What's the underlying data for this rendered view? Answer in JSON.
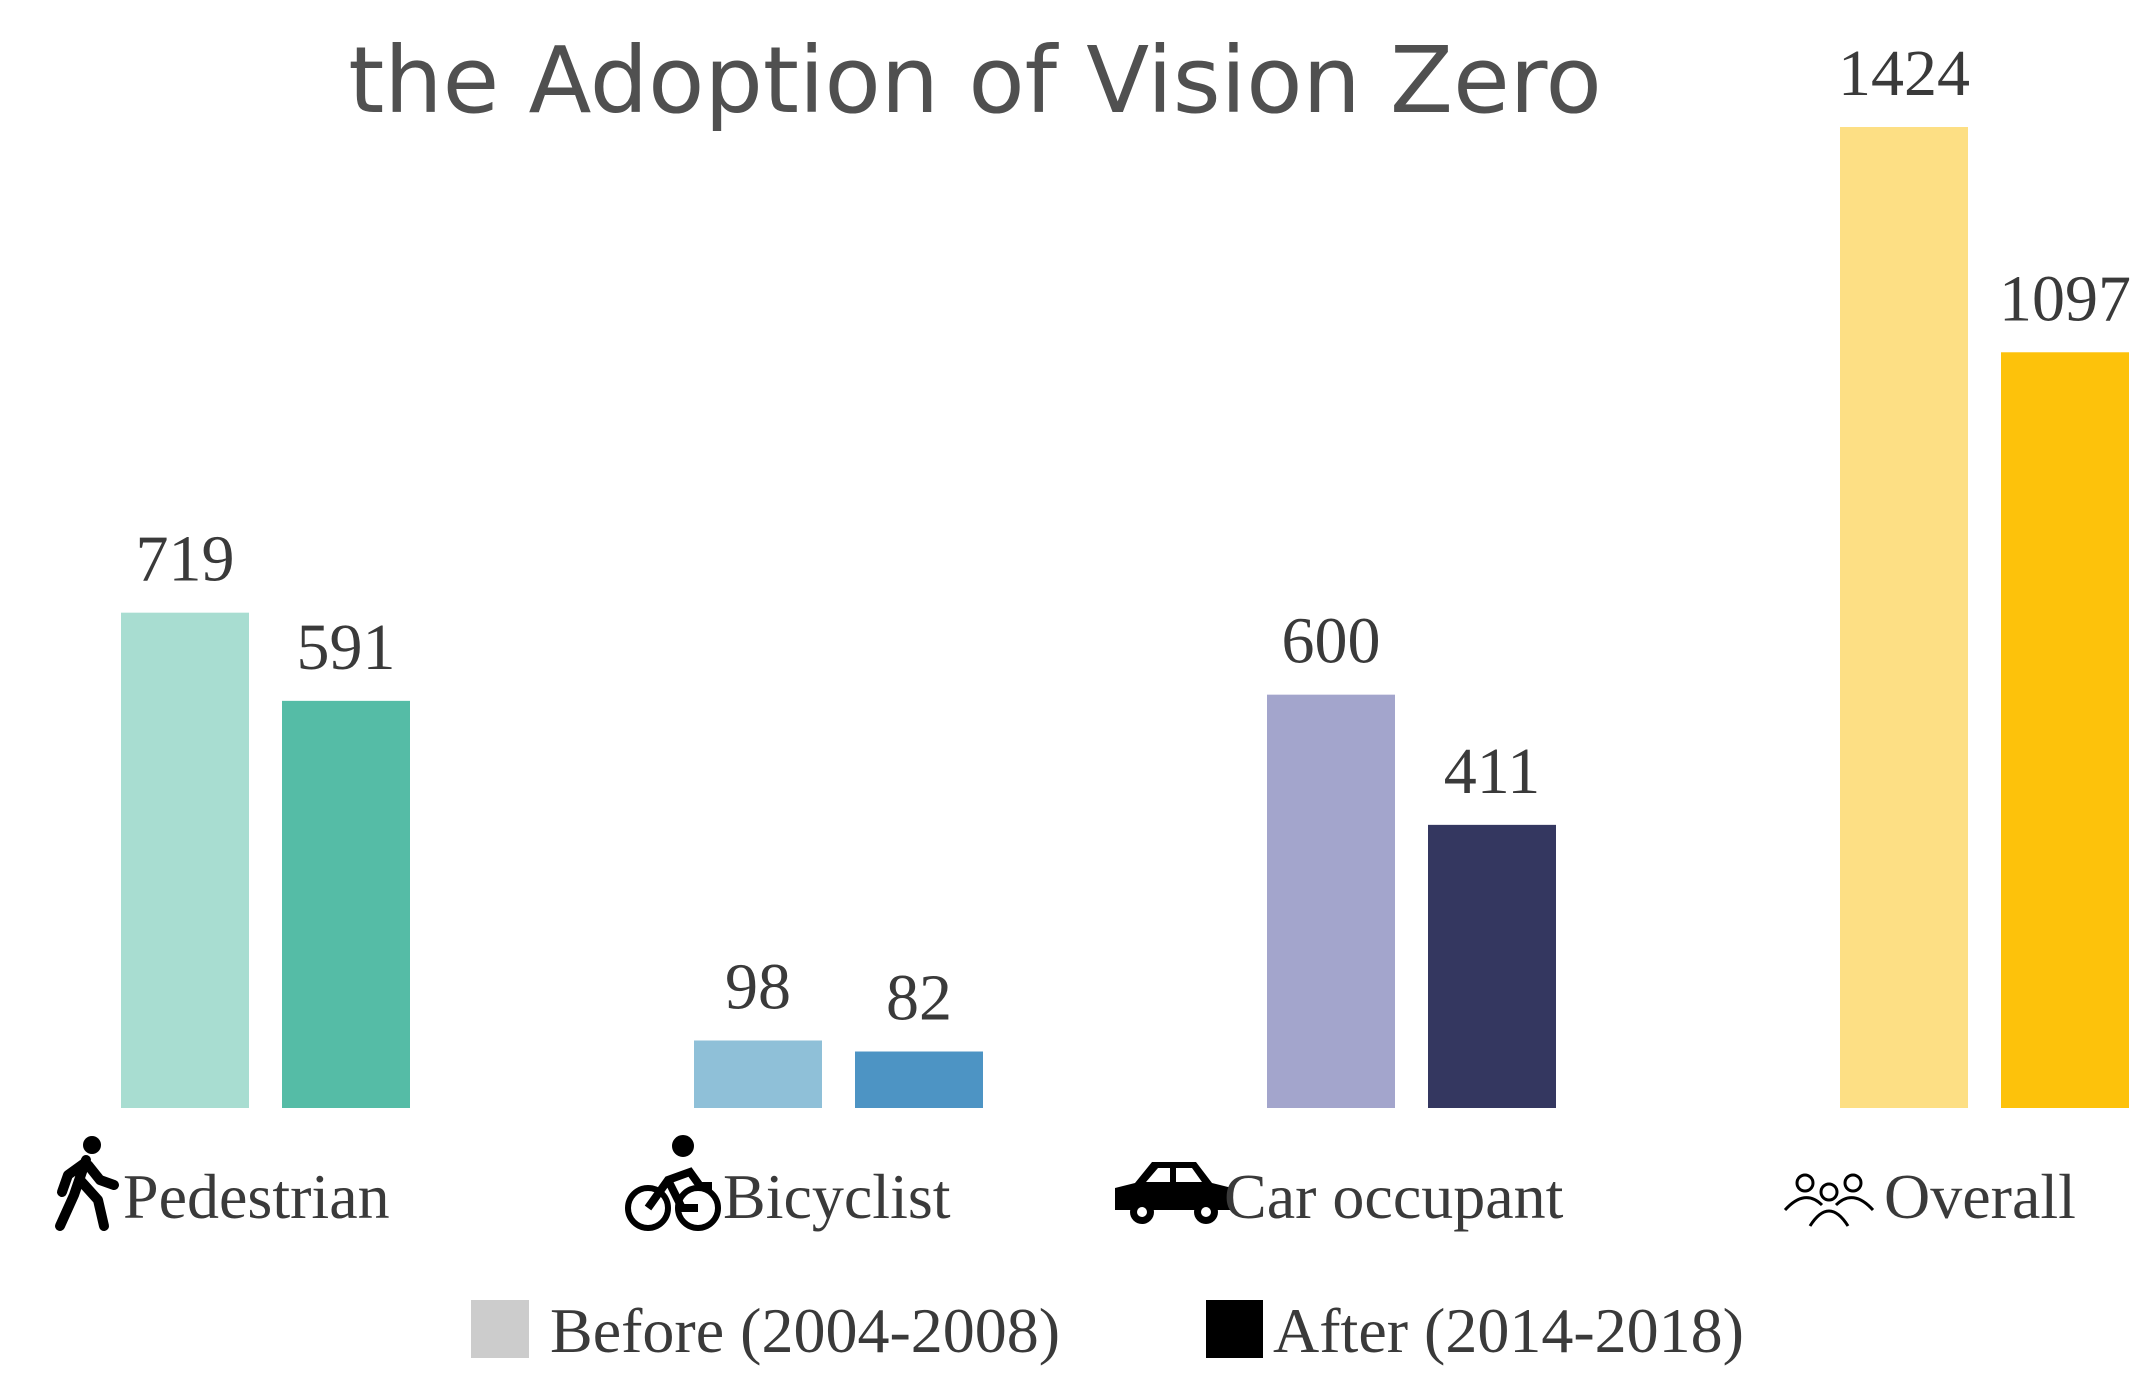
{
  "chart_data": {
    "type": "bar",
    "title": "the Adoption of Vision Zero",
    "categories": [
      "Pedestrian",
      "Bicyclist",
      "Car occupant",
      "Overall"
    ],
    "series": [
      {
        "name": "Before (2004-2008)",
        "color": "#cccccc",
        "bar_colors": [
          "#a8ddd1",
          "#8fc0d8",
          "#a3a5cc",
          "#fddf84"
        ],
        "values": [
          719,
          98,
          600,
          1424
        ]
      },
      {
        "name": "After (2014-2018)",
        "color": "#000000",
        "bar_colors": [
          "#55bca6",
          "#4d94c4",
          "#343760",
          "#fdc20b"
        ],
        "values": [
          591,
          82,
          411,
          1097
        ]
      }
    ]
  }
}
